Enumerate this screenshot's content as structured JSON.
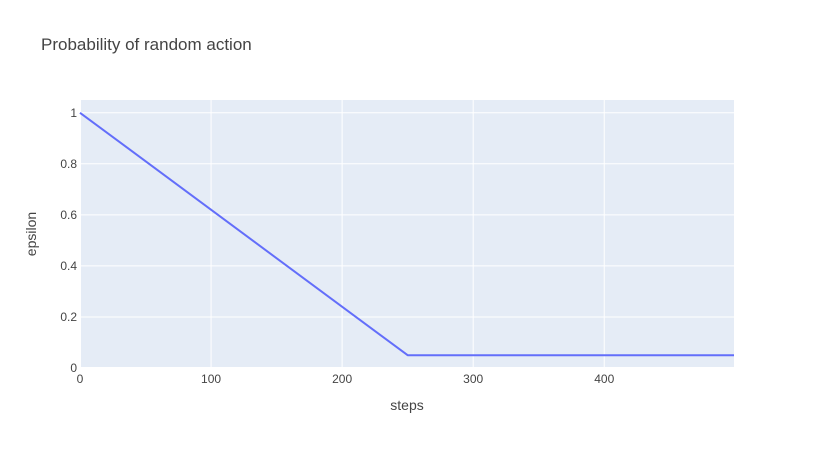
{
  "chart_data": {
    "type": "line",
    "title": "Probability of random action",
    "xlabel": "steps",
    "ylabel": "epsilon",
    "xlim": [
      0,
      499
    ],
    "ylim": [
      0,
      1.05
    ],
    "x_ticks": [
      "0",
      "100",
      "200",
      "300",
      "400"
    ],
    "y_ticks": [
      "0",
      "0.2",
      "0.4",
      "0.6",
      "0.8",
      "1"
    ],
    "grid": true,
    "plot_background": "#E5ECF6",
    "series": [
      {
        "color": "#636EFA",
        "x": [
          0,
          250,
          499
        ],
        "y": [
          1.0,
          0.05,
          0.05
        ]
      }
    ]
  }
}
